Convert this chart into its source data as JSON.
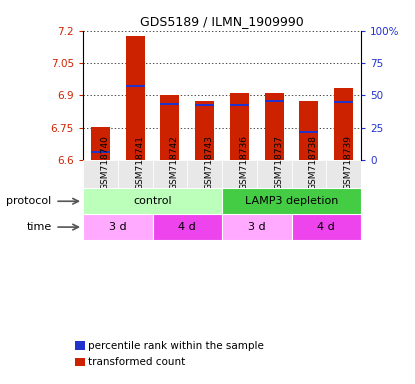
{
  "title": "GDS5189 / ILMN_1909990",
  "samples": [
    "GSM718740",
    "GSM718741",
    "GSM718742",
    "GSM718743",
    "GSM718736",
    "GSM718737",
    "GSM718738",
    "GSM718739"
  ],
  "bar_tops": [
    6.752,
    7.175,
    6.9,
    6.875,
    6.91,
    6.91,
    6.875,
    6.935
  ],
  "percentile_values": [
    6.636,
    6.945,
    6.86,
    6.855,
    6.855,
    6.875,
    6.73,
    6.87
  ],
  "bar_bottom": 6.6,
  "ylim_left": [
    6.6,
    7.2
  ],
  "yticks_left": [
    6.6,
    6.75,
    6.9,
    7.05,
    7.2
  ],
  "ytick_labels_left": [
    "6.6",
    "6.75",
    "6.9",
    "7.05",
    "7.2"
  ],
  "ylim_right": [
    0,
    100
  ],
  "yticks_right": [
    0,
    25,
    50,
    75,
    100
  ],
  "ytick_labels_right": [
    "0",
    "25",
    "50",
    "75",
    "100%"
  ],
  "bar_color": "#cc2200",
  "percentile_color": "#2233cc",
  "protocol_groups": [
    {
      "label": "control",
      "start": 0,
      "end": 4,
      "color": "#bbffbb"
    },
    {
      "label": "LAMP3 depletion",
      "start": 4,
      "end": 8,
      "color": "#44cc44"
    }
  ],
  "time_groups": [
    {
      "label": "3 d",
      "start": 0,
      "end": 2,
      "color": "#ffaaff"
    },
    {
      "label": "4 d",
      "start": 2,
      "end": 4,
      "color": "#ee44ee"
    },
    {
      "label": "3 d",
      "start": 4,
      "end": 6,
      "color": "#ffaaff"
    },
    {
      "label": "4 d",
      "start": 6,
      "end": 8,
      "color": "#ee44ee"
    }
  ],
  "legend_items": [
    {
      "label": "transformed count",
      "color": "#cc2200"
    },
    {
      "label": "percentile rank within the sample",
      "color": "#2233cc"
    }
  ],
  "protocol_label": "protocol",
  "time_label": "time",
  "bar_width": 0.55,
  "percentile_bar_height": 0.01,
  "left_tick_color": "#cc2200",
  "right_tick_color": "#2233cc",
  "title_fontsize": 9,
  "tick_fontsize": 7.5,
  "sample_fontsize": 6.5,
  "row_label_fontsize": 8,
  "row_text_fontsize": 8,
  "legend_fontsize": 7.5
}
